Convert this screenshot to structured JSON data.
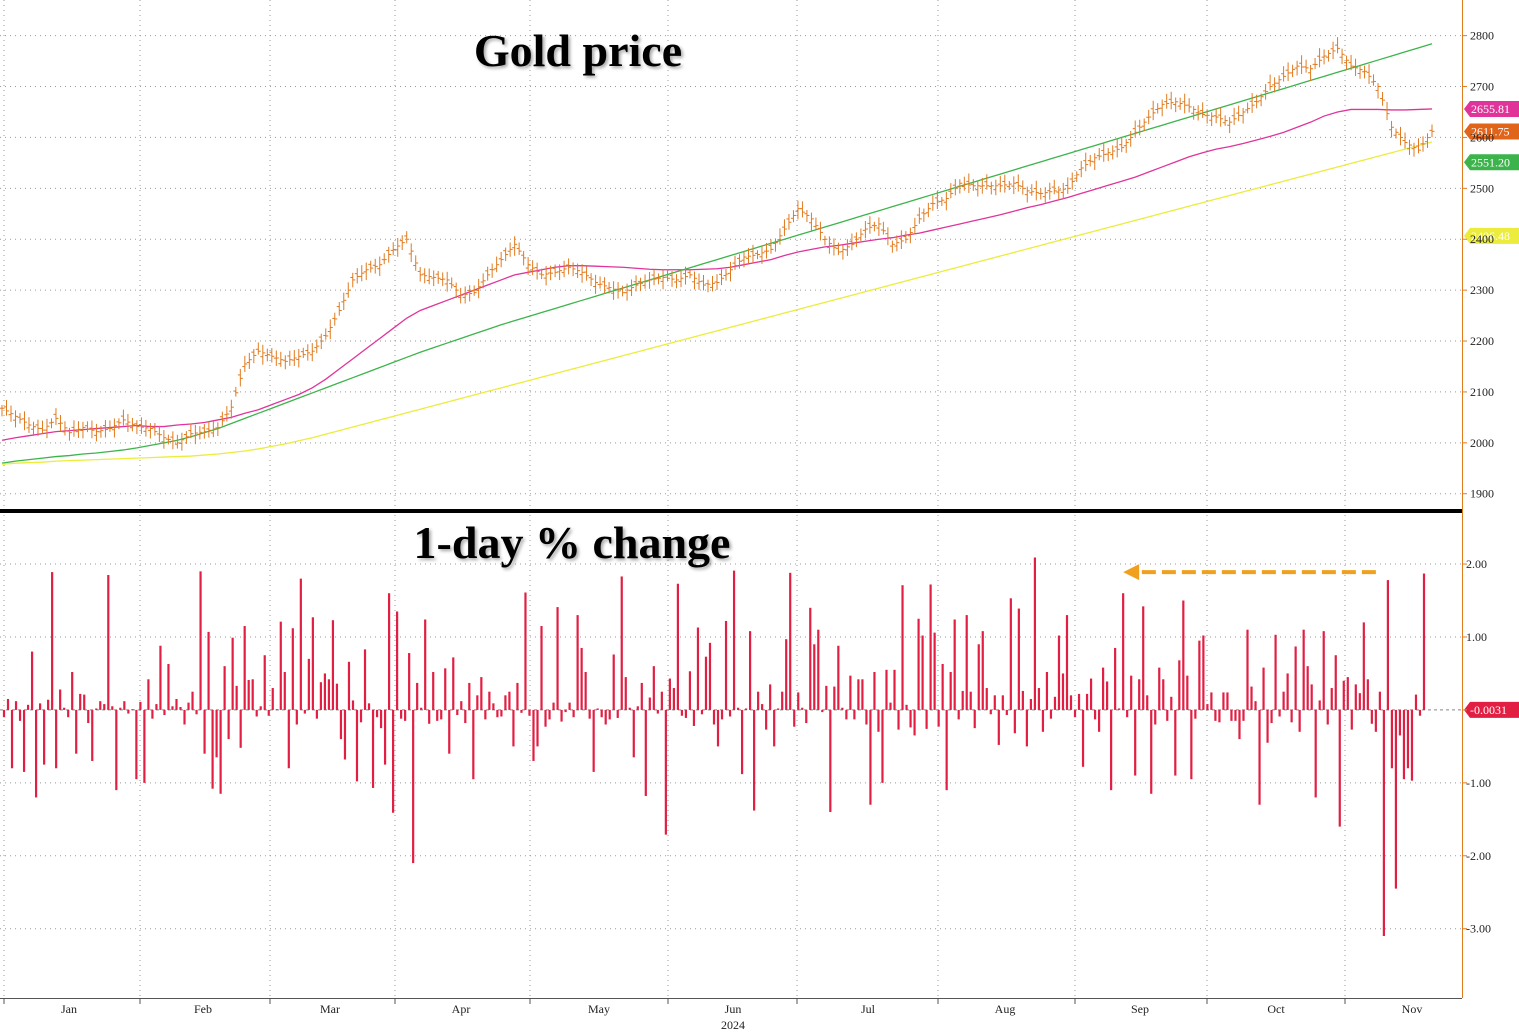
{
  "chart_data": [
    {
      "type": "line",
      "title": "Gold price",
      "ylim": [
        1870,
        2870
      ],
      "y_ticks": [
        1900,
        2000,
        2100,
        2200,
        2300,
        2400,
        2500,
        2600,
        2700,
        2800
      ],
      "grid": true,
      "price_bars_color": "#e07a1f",
      "x": [
        0,
        3,
        6,
        9,
        12,
        15,
        18,
        21,
        24,
        27,
        30,
        33,
        36,
        39,
        42,
        45,
        48,
        51,
        54,
        57,
        60,
        63,
        66,
        69,
        72,
        75,
        78,
        81,
        84,
        87,
        90,
        93,
        96,
        99,
        102,
        105,
        108,
        111,
        114,
        117,
        120,
        123,
        126,
        129,
        132,
        135,
        138,
        141,
        144,
        147,
        150,
        153,
        156,
        159,
        162,
        165,
        168,
        171,
        174,
        177,
        180,
        183,
        186,
        189,
        192,
        195,
        198,
        201,
        204,
        207,
        210,
        213,
        216,
        219,
        222,
        225,
        228,
        231,
        234,
        237,
        240,
        243,
        246,
        249,
        252,
        255,
        258,
        261,
        264,
        267,
        270,
        273,
        276,
        279,
        282,
        285,
        288,
        291,
        294,
        297,
        300,
        303,
        306,
        309,
        312,
        315,
        318
      ],
      "series": [
        {
          "kind": "price",
          "color": "#e07a1f",
          "values": [
            2068,
            2052,
            2035,
            2025,
            2048,
            2020,
            2030,
            2022,
            2028,
            2045,
            2032,
            2028,
            2010,
            2000,
            2018,
            2022,
            2030,
            2070,
            2155,
            2180,
            2170,
            2160,
            2170,
            2180,
            2210,
            2260,
            2320,
            2340,
            2350,
            2380,
            2400,
            2330,
            2325,
            2320,
            2290,
            2295,
            2330,
            2360,
            2390,
            2350,
            2330,
            2335,
            2345,
            2335,
            2315,
            2305,
            2295,
            2310,
            2320,
            2325,
            2320,
            2330,
            2310,
            2315,
            2340,
            2365,
            2370,
            2380,
            2420,
            2460,
            2440,
            2400,
            2375,
            2390,
            2420,
            2430,
            2390,
            2400,
            2440,
            2470,
            2480,
            2510,
            2505,
            2505,
            2505,
            2510,
            2495,
            2490,
            2495,
            2500,
            2540,
            2560,
            2570,
            2580,
            2610,
            2640,
            2665,
            2670,
            2660,
            2645,
            2640,
            2630,
            2650,
            2670,
            2700,
            2720,
            2740,
            2735,
            2760,
            2775,
            2740,
            2730,
            2700,
            2620,
            2590,
            2575,
            2612
          ]
        },
        {
          "kind": "moving-average",
          "color": "#e0349a",
          "label": "2655.81",
          "values": [
            2005,
            2010,
            2014,
            2018,
            2022,
            2024,
            2026,
            2028,
            2030,
            2032,
            2034,
            2032,
            2032,
            2035,
            2037,
            2040,
            2045,
            2050,
            2058,
            2065,
            2075,
            2085,
            2095,
            2108,
            2125,
            2145,
            2165,
            2185,
            2205,
            2225,
            2245,
            2260,
            2270,
            2280,
            2290,
            2300,
            2310,
            2320,
            2330,
            2335,
            2340,
            2345,
            2348,
            2348,
            2347,
            2346,
            2345,
            2343,
            2341,
            2340,
            2340,
            2340,
            2341,
            2342,
            2345,
            2350,
            2355,
            2360,
            2368,
            2375,
            2380,
            2385,
            2388,
            2392,
            2396,
            2400,
            2403,
            2408,
            2412,
            2418,
            2424,
            2430,
            2436,
            2442,
            2448,
            2455,
            2462,
            2468,
            2475,
            2482,
            2490,
            2498,
            2506,
            2514,
            2522,
            2532,
            2542,
            2552,
            2562,
            2570,
            2577,
            2582,
            2588,
            2595,
            2602,
            2610,
            2620,
            2630,
            2642,
            2650,
            2655,
            2655,
            2655,
            2654,
            2654,
            2655,
            2656
          ]
        },
        {
          "kind": "moving-average",
          "color": "#3cb44b",
          "label": "2551.20",
          "values": [
            1960,
            1964,
            1967,
            1970,
            1973,
            1975,
            1978,
            1980,
            1983,
            1986,
            1990,
            1995,
            2000,
            2005,
            2012,
            2020,
            2028,
            2038,
            2048,
            2058,
            2068,
            2078,
            2088,
            2098,
            2108,
            2118,
            2128,
            2138,
            2148,
            2158,
            2168,
            2178,
            2187,
            2196,
            2205,
            2214,
            2223,
            2232,
            2240,
            2248,
            2256,
            2264,
            2272,
            2280,
            2288,
            2296,
            2304,
            2312,
            2320,
            2328,
            2336,
            2344,
            2352,
            2360,
            2368,
            2376,
            2384,
            2392,
            2400,
            2408,
            2416,
            2424,
            2432,
            2440,
            2448,
            2456,
            2464,
            2472,
            2480,
            2488,
            2496,
            2504,
            2512,
            2520,
            2528,
            2536,
            2544,
            2552,
            2560,
            2568,
            2576,
            2584,
            2592,
            2600,
            2608,
            2616,
            2624,
            2632,
            2640,
            2648,
            2656,
            2664,
            2672,
            2680,
            2688,
            2696,
            2704,
            2712,
            2720,
            2728,
            2736,
            2744,
            2752,
            2760,
            2768,
            2776,
            2784
          ]
        },
        {
          "kind": "moving-average",
          "color": "#ecec3c",
          "label": "2406.48",
          "values": [
            1958,
            1960,
            1961,
            1962,
            1964,
            1965,
            1966,
            1967,
            1968,
            1969,
            1970,
            1971,
            1972,
            1973,
            1974,
            1976,
            1978,
            1981,
            1984,
            1988,
            1993,
            1998,
            2004,
            2010,
            2017,
            2024,
            2031,
            2038,
            2045,
            2052,
            2059,
            2066,
            2073,
            2080,
            2087,
            2094,
            2101,
            2108,
            2115,
            2122,
            2129,
            2136,
            2143,
            2150,
            2157,
            2164,
            2171,
            2178,
            2185,
            2192,
            2199,
            2206,
            2213,
            2220,
            2227,
            2234,
            2241,
            2248,
            2255,
            2262,
            2269,
            2276,
            2283,
            2290,
            2297,
            2304,
            2311,
            2318,
            2325,
            2332,
            2339,
            2346,
            2353,
            2360,
            2367,
            2374,
            2381,
            2388,
            2395,
            2402,
            2409,
            2416,
            2423,
            2430,
            2437,
            2444,
            2451,
            2458,
            2465,
            2472,
            2479,
            2486,
            2493,
            2500,
            2507,
            2514,
            2521,
            2528,
            2535,
            2542,
            2549,
            2556,
            2563,
            2570,
            2577,
            2584,
            2591
          ]
        }
      ],
      "last_values": [
        {
          "label": "2655.81",
          "value": 2655.81,
          "color": "#e0349a"
        },
        {
          "label": "2611.75",
          "value": 2611.75,
          "color": "#e0641a"
        },
        {
          "label": "2551.20",
          "value": 2551.2,
          "color": "#3cb44b"
        },
        {
          "label": "2406.48",
          "value": 2406.48,
          "color": "#ecec3c",
          "text_color": "#000000"
        }
      ]
    },
    {
      "type": "bar",
      "title": "1-day % change",
      "ylim": [
        -3.95,
        2.7
      ],
      "y_ticks": [
        -3,
        -2,
        -1,
        0,
        1,
        2
      ],
      "y_tick_labels": [
        "-3.00",
        "-2.00",
        "-1.00",
        "",
        "1.00",
        "2.00"
      ],
      "grid": true,
      "bar_color": "#e21f43",
      "values": [
        -0.1,
        0.15,
        -0.8,
        0.12,
        -0.15,
        -0.85,
        0.07,
        0.8,
        -1.2,
        0.09,
        -0.75,
        0.14,
        1.89,
        -0.8,
        0.28,
        0.03,
        -0.1,
        0.52,
        -0.6,
        0.22,
        0.21,
        -0.18,
        -0.7,
        0.02,
        0.12,
        0.08,
        1.85,
        0.05,
        -1.1,
        0.03,
        0.12,
        -0.05,
        0.01,
        -0.95,
        0.11,
        -1.0,
        0.42,
        -0.12,
        0.08,
        0.88,
        -0.07,
        0.63,
        0.05,
        0.15,
        0.04,
        -0.2,
        0.1,
        0.25,
        -0.06,
        1.9,
        -0.6,
        1.07,
        -1.08,
        -0.65,
        -1.15,
        0.6,
        -0.4,
        0.99,
        0.33,
        -0.52,
        1.15,
        0.41,
        0.42,
        -0.09,
        0.05,
        0.75,
        -0.08,
        0.3,
        0.01,
        1.21,
        0.52,
        -0.8,
        1.12,
        -0.2,
        1.8,
        -0.05,
        0.7,
        1.27,
        -0.12,
        0.38,
        0.5,
        0.42,
        1.23,
        0.36,
        -0.4,
        -0.68,
        0.66,
        0.13,
        -0.98,
        -0.17,
        0.83,
        0.09,
        -1.07,
        -0.1,
        -0.25,
        -0.75,
        1.6,
        -1.41,
        1.35,
        -0.12,
        -0.15,
        0.78,
        -2.1,
        0.37,
        0.03,
        1.24,
        -0.19,
        0.52,
        -0.15,
        -0.13,
        0.57,
        -0.6,
        0.72,
        -0.07,
        0.12,
        -0.18,
        0.37,
        -0.95,
        0.2,
        0.45,
        -0.13,
        0.25,
        0.09,
        -0.1,
        -0.09,
        0.2,
        0.25,
        -0.5,
        0.37,
        -0.04,
        1.61,
        -0.08,
        -0.7,
        -0.5,
        1.15,
        -0.23,
        -0.13,
        0.1,
        1.41,
        -0.16,
        -0.03,
        0.1,
        -0.1,
        1.3,
        0.85,
        0.52,
        -0.12,
        -0.85,
        0.02,
        -0.1,
        -0.2,
        -0.13,
        0.76,
        -0.11,
        1.83,
        0.45,
        0.03,
        -0.65,
        0.05,
        0.37,
        -1.18,
        0.17,
        0.6,
        -0.05,
        0.25,
        -1.71,
        0.43,
        0.3,
        1.73,
        -0.08,
        -0.11,
        0.53,
        -0.22,
        1.13,
        -0.06,
        0.73,
        0.92,
        -0.2,
        -0.5,
        -0.13,
        1.22,
        -0.09,
        1.91,
        0.03,
        -0.88,
        0.02,
        1.08,
        -1.38,
        0.25,
        0.08,
        -0.27,
        0.35,
        -0.5,
        0.02,
        0.25,
        0.97,
        1.88,
        -0.23,
        0.24,
        0.03,
        -0.18,
        1.4,
        0.9,
        1.1,
        -0.03,
        0.33,
        -1.4,
        0.32,
        0.88,
        0.03,
        -0.13,
        0.47,
        -0.13,
        0.42,
        0.42,
        -0.2,
        -1.3,
        0.52,
        -0.3,
        -1.0,
        0.55,
        0.1,
        0.55,
        -0.27,
        1.71,
        0.07,
        -0.24,
        -0.35,
        1.25,
        1.02,
        -0.26,
        1.72,
        1.06,
        -0.23,
        0.63,
        -1.1,
        0.52,
        1.24,
        -0.13,
        0.26,
        1.3,
        0.25,
        -0.25,
        0.9,
        1.08,
        0.3,
        -0.06,
        0.2,
        -0.48,
        0.2,
        -0.07,
        1.53,
        -0.32,
        1.39,
        0.26,
        -0.5,
        0.15,
        2.09,
        0.3,
        -0.3,
        0.52,
        -0.12,
        0.18,
        1.02,
        0.5,
        1.3,
        0.2,
        -0.1,
        0.22,
        -0.78,
        0.22,
        0.43,
        -0.13,
        -0.3,
        0.58,
        0.39,
        -1.1,
        0.85,
        0.02,
        1.6,
        -0.1,
        0.47,
        -0.9,
        0.42,
        1.42,
        0.2,
        -1.15,
        -0.2,
        0.58,
        0.42,
        -0.15,
        0.18,
        -0.9,
        0.68,
        1.5,
        0.47,
        -0.95,
        -0.12,
        0.95,
        1.02,
        0.08,
        0.24,
        -0.15,
        -0.17,
        0.24,
        0.24,
        -0.15,
        -0.15,
        -0.4,
        -0.15,
        1.1,
        0.32,
        0.12,
        -1.3,
        0.58,
        -0.45,
        -0.18,
        1.03,
        -0.09,
        0.25,
        0.5,
        -0.17,
        0.87,
        -0.3,
        1.1,
        0.6,
        0.35,
        -1.2,
        0.13,
        1.08,
        -0.2,
        0.3,
        0.75,
        -1.6,
        0.4,
        0.45,
        -0.27,
        0.35,
        0.23,
        1.2,
        0.42,
        -0.19,
        -0.3,
        0.25,
        -3.1,
        1.78,
        -0.8,
        -2.45,
        -0.35,
        -0.95,
        -0.8,
        -0.97,
        0.21,
        -0.08,
        1.87
      ],
      "last_value_label": "-0.0031",
      "last_value_color": "#e21f43",
      "annotation": {
        "type": "dashed-arrow",
        "color": "#f0a01e",
        "from_index": 342,
        "to_index": 279,
        "value": 1.89
      }
    }
  ],
  "x_axis": {
    "months": [
      "Jan",
      "Feb",
      "Mar",
      "Apr",
      "May",
      "Jun",
      "Jul",
      "Aug",
      "Sep",
      "Oct",
      "Nov"
    ],
    "year": "2024"
  }
}
